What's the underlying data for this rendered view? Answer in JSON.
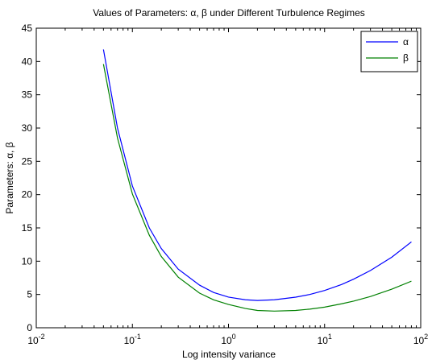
{
  "chart_data": {
    "type": "line",
    "title": "Values of Parameters: α, β under Different Turbulence Regimes",
    "xlabel": "Log intensity variance",
    "ylabel": "Parameters: α, β",
    "xscale": "log",
    "xlim": [
      0.01,
      100
    ],
    "ylim": [
      0,
      45
    ],
    "x_ticks": [
      {
        "base": "10",
        "exp": "-2"
      },
      {
        "base": "10",
        "exp": "-1"
      },
      {
        "base": "10",
        "exp": "0"
      },
      {
        "base": "10",
        "exp": "1"
      },
      {
        "base": "10",
        "exp": "2"
      }
    ],
    "y_ticks": [
      "0",
      "5",
      "10",
      "15",
      "20",
      "25",
      "30",
      "35",
      "40",
      "45"
    ],
    "grid": false,
    "legend_position": "top-right",
    "series": [
      {
        "name": "α",
        "color": "#0000ff",
        "x": [
          0.05,
          0.07,
          0.1,
          0.15,
          0.2,
          0.3,
          0.5,
          0.7,
          1.0,
          1.5,
          2.0,
          3.0,
          5.0,
          7.0,
          10,
          15,
          20,
          30,
          50,
          80
        ],
        "y": [
          41.8,
          30.0,
          21.3,
          15.0,
          11.9,
          8.8,
          6.4,
          5.3,
          4.6,
          4.2,
          4.1,
          4.2,
          4.6,
          5.0,
          5.6,
          6.5,
          7.3,
          8.6,
          10.6,
          12.9
        ]
      },
      {
        "name": "β",
        "color": "#008000",
        "x": [
          0.05,
          0.07,
          0.1,
          0.15,
          0.2,
          0.3,
          0.5,
          0.7,
          1.0,
          1.5,
          2.0,
          3.0,
          5.0,
          7.0,
          10,
          15,
          20,
          30,
          50,
          80
        ],
        "y": [
          39.6,
          28.5,
          20.1,
          13.9,
          10.7,
          7.6,
          5.2,
          4.2,
          3.5,
          2.9,
          2.6,
          2.5,
          2.6,
          2.8,
          3.1,
          3.6,
          4.0,
          4.7,
          5.8,
          7.0
        ]
      }
    ]
  }
}
